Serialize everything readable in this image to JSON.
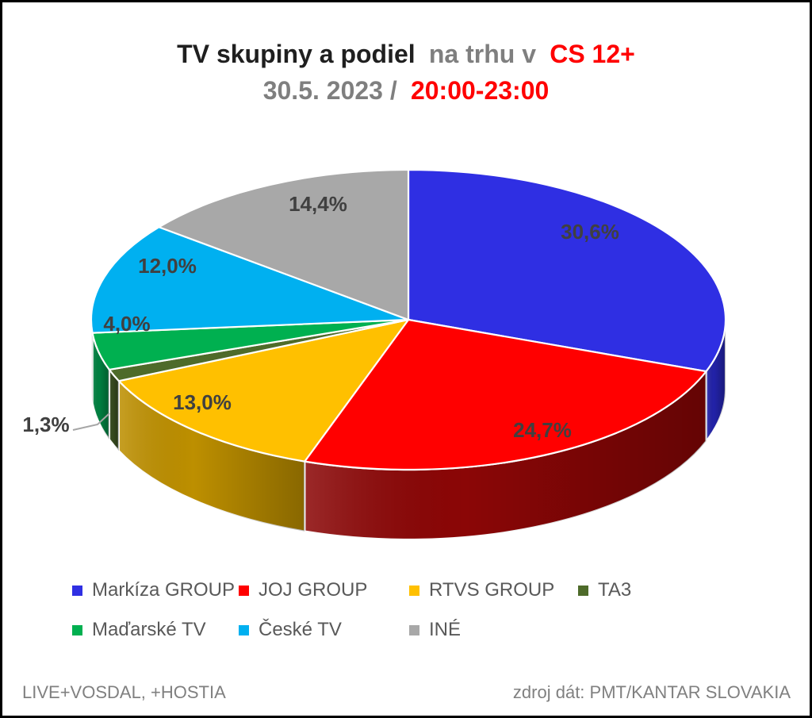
{
  "title": {
    "line1_black": "TV skupiny a podiel",
    "line1_gray": "na trhu v",
    "line1_red": "CS 12+",
    "line2_gray": "30.5. 2023 /",
    "line2_red": "20:00-23:00"
  },
  "footer": {
    "left": "LIVE+VOSDAL, +HOSTIA",
    "right": "zdroj dát: PMT/KANTAR SLOVAKIA"
  },
  "chart_data": {
    "type": "pie",
    "style": "3d",
    "title": "TV skupiny a podiel na trhu v CS 12+ / 30.5. 2023 / 20:00-23:00",
    "categories": [
      "Markíza GROUP",
      "JOJ GROUP",
      "RTVS GROUP",
      "TA3",
      "Maďarské TV",
      "České TV",
      "INÉ"
    ],
    "values": [
      30.6,
      24.7,
      13.0,
      1.3,
      4.0,
      12.0,
      14.4
    ],
    "labels": [
      "30,6%",
      "24,7%",
      "13,0%",
      "1,3%",
      "4,0%",
      "12,0%",
      "14,4%"
    ],
    "colors": [
      "#2F2FE3",
      "#FF0000",
      "#FFC000",
      "#4E6B2A",
      "#00B050",
      "#00B0F0",
      "#A8A8A8"
    ],
    "side_colors": [
      "#2222A8",
      "#8B0606",
      "#BD8F00",
      "#36491E",
      "#008040",
      "#0079A5",
      "#737373"
    ],
    "label_color": "#404040",
    "leader_line_color": "#A6A6A6",
    "legend_position": "bottom",
    "start_angle_deg": 0,
    "direction": "clockwise",
    "unit": "%"
  }
}
